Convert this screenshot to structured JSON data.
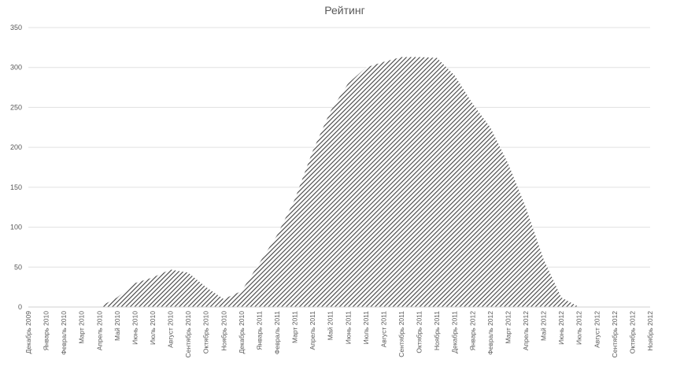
{
  "chart_data": {
    "type": "area",
    "title": "Рейтинг",
    "xlabel": "",
    "ylabel": "",
    "ylim": [
      0,
      350
    ],
    "yticks": [
      0,
      50,
      100,
      150,
      200,
      250,
      300,
      350
    ],
    "grid": true,
    "legend": "none",
    "fill_pattern": "diagonal-hatch",
    "colors": {
      "hatch": "#404040",
      "grid": "#e0e0e0",
      "text": "#595959"
    },
    "categories": [
      "Декабрь 2009",
      "Январь 2010",
      "Февраль 2010",
      "Март 2010",
      "Апрель 2010",
      "Май 2010",
      "Июнь 2010",
      "Июль 2010",
      "Август 2010",
      "Сентябрь 2010",
      "Октябрь 2010",
      "Ноябрь 2010",
      "Декабрь 2010",
      "Январь 2011",
      "Февраль 2011",
      "Март 2011",
      "Апрель 2011",
      "Май 2011",
      "Июнь 2011",
      "Июль 2011",
      "Август 2011",
      "Сентябрь 2011",
      "Октябрь 2011",
      "Ноябрь 2011",
      "Декабрь 2011",
      "Январь 2012",
      "Февраль 2012",
      "Март 2012",
      "Апрель 2012",
      "Май 2012",
      "Июнь 2012",
      "Июль 2012",
      "Август 2012",
      "Сентябрь 2012",
      "Октябрь 2012",
      "Ноябрь 2012"
    ],
    "series": [
      {
        "values": [
          0,
          0,
          0,
          0,
          0,
          12,
          30,
          37,
          47,
          43,
          25,
          10,
          20,
          55,
          90,
          135,
          195,
          245,
          280,
          300,
          307,
          313,
          313,
          312,
          290,
          255,
          225,
          180,
          125,
          60,
          12,
          0,
          0,
          0,
          0,
          0
        ]
      }
    ]
  }
}
